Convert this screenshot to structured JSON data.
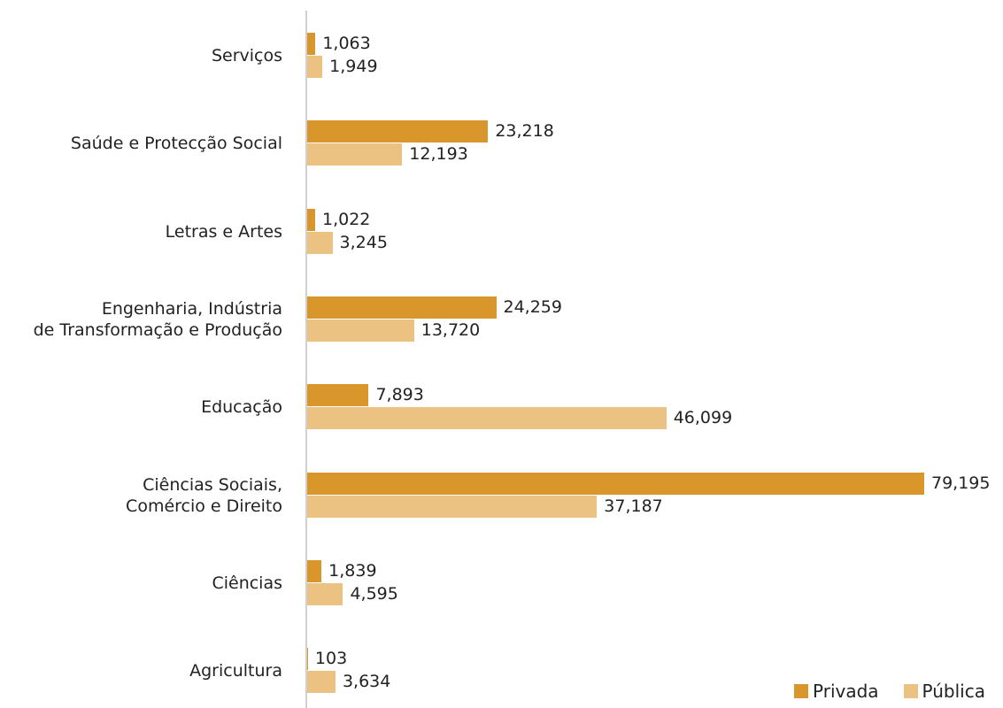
{
  "chart_data": {
    "type": "barh",
    "categories": [
      "Serviços",
      "Saúde e Protecção Social",
      "Letras e Artes",
      "Engenharia, Indústria\nde Transformação e Produção",
      "Educação",
      "Ciências Sociais,\nComércio e Direito",
      "Ciências",
      "Agricultura"
    ],
    "series": [
      {
        "name": "Privada",
        "color": "#d9962b",
        "values": [
          1063,
          23218,
          1022,
          24259,
          7893,
          79195,
          1839,
          103
        ],
        "value_labels": [
          "1,063",
          "23,218",
          "1,022",
          "24,259",
          "7,893",
          "79,195",
          "1,839",
          "103"
        ]
      },
      {
        "name": "Pública",
        "color": "#ecc282",
        "values": [
          1949,
          12193,
          3245,
          13720,
          46099,
          37187,
          4595,
          3634
        ],
        "value_labels": [
          "1,949",
          "12,193",
          "3,245",
          "13,720",
          "46,099",
          "37,187",
          "4,595",
          "3,634"
        ]
      }
    ],
    "legend": "lower right"
  }
}
